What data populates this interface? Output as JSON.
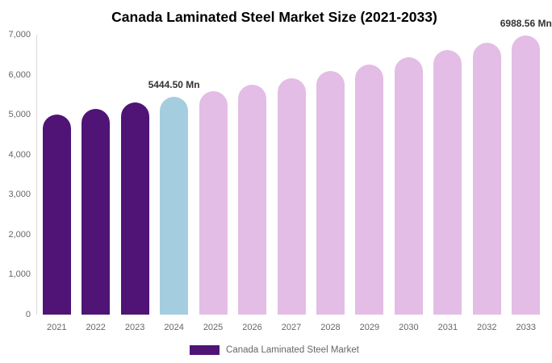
{
  "title": "Canada Laminated Steel Market Size (2021-2033)",
  "colors": {
    "historical": "#4F1475",
    "base_year": "#A5CDE0",
    "forecast": "#E3BDE6",
    "axis_line": "#D9D9D9",
    "axis_label": "#666666",
    "data_label": "#333333",
    "title_text": "#000000",
    "legend_text": "#666666",
    "background": "#FFFFFF"
  },
  "legend": {
    "label": "Canada Laminated Steel Market"
  },
  "chart_data": {
    "type": "bar",
    "title": "Canada Laminated Steel Market Size (2021-2033)",
    "categories": [
      "2021",
      "2022",
      "2023",
      "2024",
      "2025",
      "2026",
      "2027",
      "2028",
      "2029",
      "2030",
      "2031",
      "2032",
      "2033"
    ],
    "series": [
      {
        "name": "Canada Laminated Steel Market",
        "values": [
          5009.69,
          5150.62,
          5295.52,
          5444.5,
          5597.67,
          5755.16,
          5917.08,
          6083.55,
          6254.71,
          6430.68,
          6611.6,
          6797.61,
          6988.56
        ]
      }
    ],
    "unit": "Mn",
    "bar_roles": [
      "historical",
      "historical",
      "historical",
      "base_year",
      "forecast",
      "forecast",
      "forecast",
      "forecast",
      "forecast",
      "forecast",
      "forecast",
      "forecast",
      "forecast"
    ],
    "data_labels": [
      {
        "category": "2024",
        "text": "5444.50 Mn"
      },
      {
        "category": "2033",
        "text": "6988.56 Mn"
      }
    ],
    "ylim": [
      0,
      7000
    ],
    "ytick_labels": [
      "0",
      "1,000",
      "2,000",
      "3,000",
      "4,000",
      "5,000",
      "6,000",
      "7,000"
    ],
    "xlabel": "",
    "ylabel": "",
    "grid": false,
    "legend_position": "bottom"
  }
}
